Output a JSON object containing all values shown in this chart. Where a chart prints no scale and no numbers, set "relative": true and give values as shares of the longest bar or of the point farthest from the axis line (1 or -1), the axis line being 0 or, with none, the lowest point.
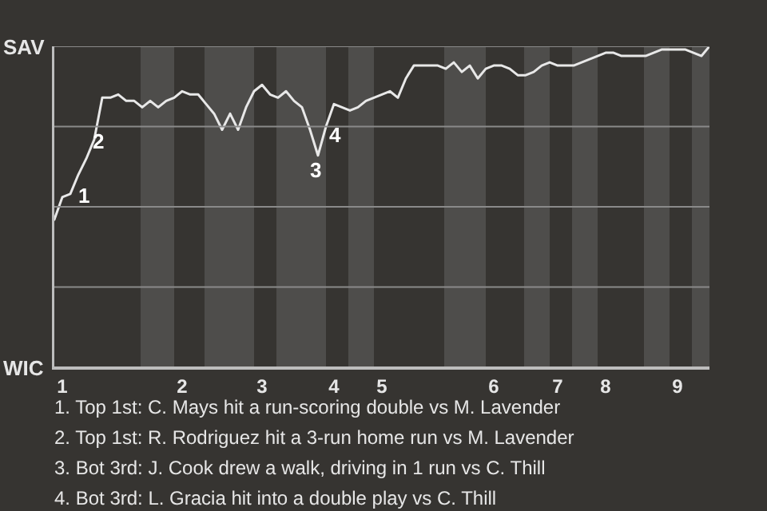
{
  "chart_data": {
    "type": "line",
    "relative": true,
    "categories": [
      null,
      "1",
      null,
      null,
      null,
      null,
      null,
      null,
      null,
      null,
      null,
      null,
      null,
      null,
      null,
      null,
      "2",
      null,
      null,
      null,
      null,
      null,
      null,
      null,
      null,
      null,
      "3",
      null,
      null,
      null,
      null,
      null,
      null,
      null,
      null,
      "4",
      null,
      null,
      null,
      null,
      null,
      "5",
      null,
      null,
      null,
      null,
      null,
      null,
      null,
      null,
      null,
      null,
      null,
      null,
      null,
      "6",
      null,
      null,
      null,
      null,
      null,
      null,
      null,
      "7",
      null,
      null,
      null,
      null,
      null,
      "8",
      null,
      null,
      null,
      null,
      null,
      null,
      null,
      null,
      "9",
      null,
      null,
      null,
      null
    ],
    "series": [
      {
        "color": "#e8e8e8",
        "values": [
          0.46,
          0.53,
          0.54,
          0.6,
          0.65,
          0.71,
          0.84,
          0.84,
          0.85,
          0.83,
          0.83,
          0.81,
          0.83,
          0.81,
          0.83,
          0.84,
          0.86,
          0.85,
          0.85,
          0.82,
          0.79,
          0.74,
          0.79,
          0.74,
          0.81,
          0.86,
          0.88,
          0.85,
          0.84,
          0.86,
          0.83,
          0.81,
          0.74,
          0.66,
          0.75,
          0.82,
          0.81,
          0.8,
          0.81,
          0.83,
          0.84,
          0.85,
          0.86,
          0.84,
          0.9,
          0.94,
          0.94,
          0.94,
          0.94,
          0.93,
          0.95,
          0.92,
          0.94,
          0.9,
          0.93,
          0.94,
          0.94,
          0.93,
          0.91,
          0.91,
          0.92,
          0.94,
          0.95,
          0.94,
          0.94,
          0.94,
          0.95,
          0.96,
          0.97,
          0.98,
          0.98,
          0.97,
          0.97,
          0.97,
          0.97,
          0.98,
          0.99,
          0.99,
          0.99,
          0.99,
          0.98,
          0.97,
          1
        ]
      }
    ],
    "marker": "none",
    "ref_lines": [
      {
        "axis": "y",
        "value": 1,
        "label": "SAV",
        "color": "#8a8a8a"
      },
      {
        "axis": "y",
        "value": 0.75,
        "color": "#8a8a8a"
      },
      {
        "axis": "y",
        "value": 0.5,
        "color": "#8a8a8a"
      },
      {
        "axis": "y",
        "value": 0.25,
        "color": "#8a8a8a"
      },
      {
        "axis": "y",
        "value": 0,
        "label": "WIC",
        "color": "#bdbdbd"
      }
    ],
    "annotations": [
      "1",
      "2",
      "3",
      "4",
      "1. Top 1st: C. Mays hit a run-scoring double vs M. Lavender",
      "2. Top 1st: R. Rodriguez hit a 3-run home run vs M. Lavender",
      "3. Bot 3rd: J. Cook drew a walk, driving in 1 run vs C. Thill",
      "4. Bot 3rd: L. Gracia hit into a double play vs C. Thill"
    ]
  }
}
